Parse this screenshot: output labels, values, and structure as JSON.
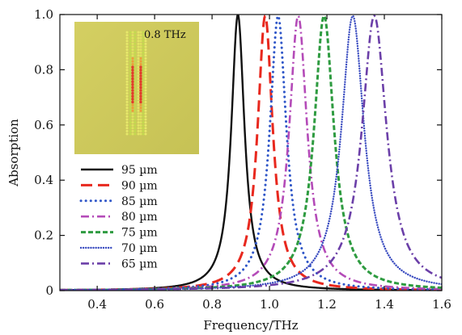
{
  "chart_data": {
    "type": "line",
    "xlabel": "Frequency/THz",
    "ylabel": "Absorption",
    "xlim": [
      0.27,
      1.6
    ],
    "ylim": [
      0,
      1.0
    ],
    "x_ticks": [
      "0.4",
      "0.6",
      "0.8",
      "1.0",
      "1.2",
      "1.4",
      "1.6"
    ],
    "y_ticks": [
      "0",
      "0.2",
      "0.4",
      "0.6",
      "0.8",
      "1.0"
    ],
    "grid": false,
    "legend_position": "center-left",
    "inset": {
      "label": "0.8 THz",
      "depicts": "absorber resonance field distribution"
    },
    "series": [
      {
        "name": "95 µm",
        "color": "#111111",
        "style": "solid",
        "peak_x": 0.89,
        "peak_y": 1.0,
        "half_width": 0.028
      },
      {
        "name": "90 µm",
        "color": "#e8281e",
        "style": "long-dash",
        "peak_x": 0.985,
        "peak_y": 0.995,
        "half_width": 0.032
      },
      {
        "name": "85 µm",
        "color": "#2f56c8",
        "style": "dotted-sparse",
        "peak_x": 1.03,
        "peak_y": 0.995,
        "half_width": 0.035
      },
      {
        "name": "80 µm",
        "color": "#b44bb8",
        "style": "dash-dot",
        "peak_x": 1.1,
        "peak_y": 0.995,
        "half_width": 0.038
      },
      {
        "name": "75 µm",
        "color": "#2e9b40",
        "style": "short-dash",
        "peak_x": 1.19,
        "peak_y": 0.995,
        "half_width": 0.042
      },
      {
        "name": "70 µm",
        "color": "#3a4cc0",
        "style": "dotted-dense",
        "peak_x": 1.29,
        "peak_y": 0.995,
        "half_width": 0.048
      },
      {
        "name": "65 µm",
        "color": "#6b3fa8",
        "style": "dash-dot",
        "peak_x": 1.365,
        "peak_y": 0.995,
        "half_width": 0.052
      }
    ]
  }
}
